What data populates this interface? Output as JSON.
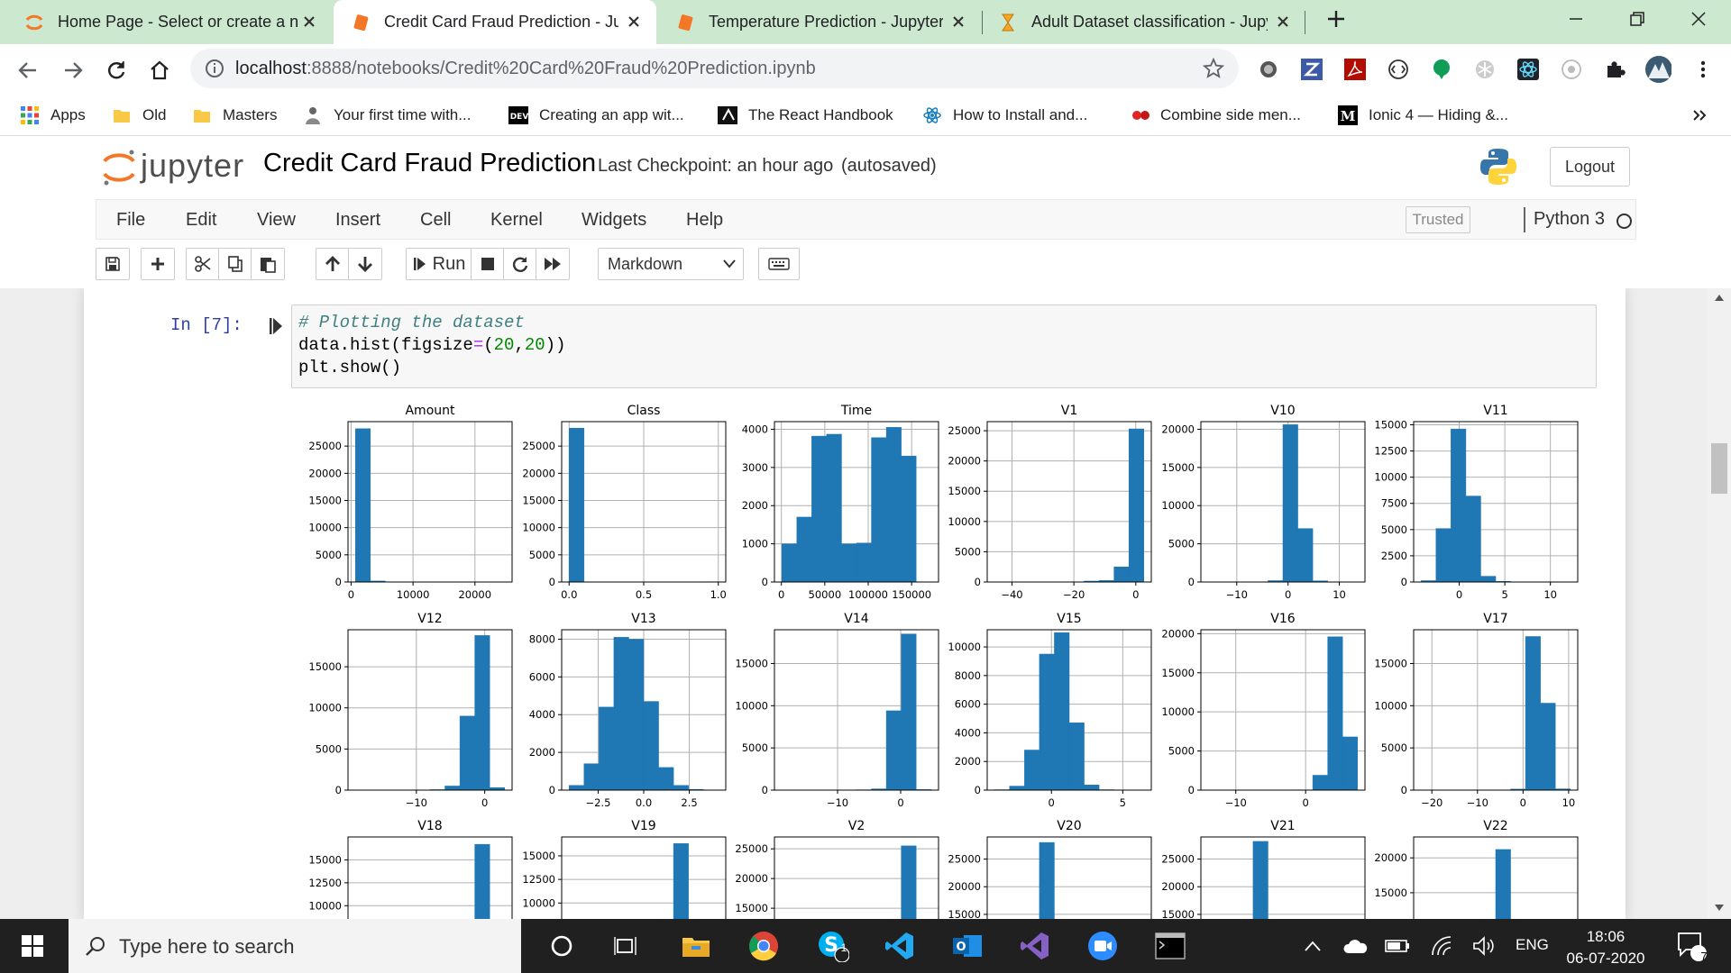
{
  "tabs": [
    {
      "title": "Home Page - Select or create a n",
      "icon": "jupyter-icon",
      "active": false
    },
    {
      "title": "Credit Card Fraud Prediction - Ju",
      "icon": "notebook-icon",
      "active": true
    },
    {
      "title": "Temperature Prediction - Jupyter",
      "icon": "notebook-icon",
      "active": false
    },
    {
      "title": "Adult Dataset classification - Jupy",
      "icon": "hourglass-icon",
      "active": false
    }
  ],
  "address": {
    "host": "localhost",
    "path": ":8888/notebooks/Credit%20Card%20Fraud%20Prediction.ipynb"
  },
  "bookmarks": [
    {
      "label": "Apps",
      "icon": "apps-grid-icon"
    },
    {
      "label": "Old",
      "icon": "folder-icon"
    },
    {
      "label": "Masters",
      "icon": "folder-icon"
    },
    {
      "label": "Your first time with...",
      "icon": "person-icon"
    },
    {
      "label": "Creating an app wit...",
      "icon": "dev-icon"
    },
    {
      "label": "The React Handbook",
      "icon": "react-handbook-icon"
    },
    {
      "label": "How to Install and...",
      "icon": "react-icon"
    },
    {
      "label": "Combine side men...",
      "icon": "ionic-icon"
    },
    {
      "label": "Ionic 4 — Hiding &...",
      "icon": "medium-icon"
    }
  ],
  "jupyter": {
    "brand": "jupyter",
    "notebook_title": "Credit Card Fraud Prediction",
    "checkpoint": "Last Checkpoint: an hour ago",
    "autosaved": "(autosaved)",
    "logout": "Logout"
  },
  "menu": [
    "File",
    "Edit",
    "View",
    "Insert",
    "Cell",
    "Kernel",
    "Widgets",
    "Help"
  ],
  "trusted": "Trusted",
  "kernel": "Python 3",
  "toolbar": {
    "run": "Run",
    "cell_type": "Markdown"
  },
  "cell": {
    "prompt": "In [7]:",
    "code": [
      {
        "comment": "# Plotting the dataset"
      },
      {
        "pre": "data.hist(figsize",
        "op": "=",
        "mid": "(",
        "n1": "20",
        "sep": ",",
        "n2": "20",
        "post": "))"
      },
      {
        "text": "plt.show()"
      }
    ]
  },
  "chart_data": {
    "type": "bar",
    "title": "",
    "grid": true,
    "color": "#1f77b4",
    "subplots": [
      {
        "title": "Amount",
        "bins": 10,
        "xlim": [
          -500,
          26000
        ],
        "xticks": [
          0,
          10000,
          20000
        ],
        "xticklabels": [
          "0",
          "10000",
          "20000"
        ],
        "ylim": [
          0,
          29500
        ],
        "yticks": [
          0,
          5000,
          10000,
          15000,
          20000,
          25000
        ],
        "values": [
          28200,
          180,
          14,
          2,
          1,
          1,
          1,
          0,
          0,
          1
        ]
      },
      {
        "title": "Class",
        "bins": 10,
        "xlim": [
          -0.05,
          1.05
        ],
        "xticks": [
          0,
          0.5,
          1
        ],
        "xticklabels": [
          "0.0",
          "0.5",
          "1.0"
        ],
        "ylim": [
          0,
          29500
        ],
        "yticks": [
          0,
          5000,
          10000,
          15000,
          20000,
          25000
        ],
        "values": [
          28300,
          0,
          0,
          0,
          0,
          0,
          0,
          0,
          0,
          45
        ]
      },
      {
        "title": "Time",
        "bins": 10,
        "xlim": [
          -8000,
          181000
        ],
        "xticks": [
          0,
          50000,
          100000,
          150000
        ],
        "xticklabels": [
          "0",
          "50000",
          "100000",
          "150000"
        ],
        "ylim": [
          0,
          4200
        ],
        "yticks": [
          0,
          1000,
          2000,
          3000,
          4000
        ],
        "values": [
          1000,
          1700,
          3820,
          3870,
          1000,
          1020,
          3780,
          4050,
          3300,
          0
        ]
      },
      {
        "title": "V1",
        "bins": 10,
        "xlim": [
          -48,
          5
        ],
        "xticks": [
          -40,
          -20,
          0
        ],
        "xticklabels": [
          "−40",
          "−20",
          "0"
        ],
        "ylim": [
          0,
          26500
        ],
        "yticks": [
          0,
          5000,
          10000,
          15000,
          20000,
          25000
        ],
        "values": [
          0,
          0,
          0,
          0,
          0,
          0,
          150,
          250,
          2500,
          25300
        ]
      },
      {
        "title": "V10",
        "bins": 10,
        "xlim": [
          -17,
          15
        ],
        "xticks": [
          -10,
          0,
          10
        ],
        "xticklabels": [
          "−10",
          "0",
          "10"
        ],
        "ylim": [
          0,
          21000
        ],
        "yticks": [
          0,
          5000,
          10000,
          15000,
          20000
        ],
        "values": [
          0,
          0,
          0,
          0,
          180,
          20600,
          7000,
          150,
          10,
          0
        ]
      },
      {
        "title": "V11",
        "bins": 10,
        "xlim": [
          -5,
          13
        ],
        "xticks": [
          0,
          5,
          10
        ],
        "xticklabels": [
          "0",
          "5",
          "10"
        ],
        "ylim": [
          0,
          15300
        ],
        "yticks": [
          0,
          2500,
          5000,
          7500,
          10000,
          12500,
          15000
        ],
        "values": [
          130,
          5100,
          14600,
          8200,
          550,
          60,
          5,
          0,
          0,
          0
        ]
      },
      {
        "title": "V12",
        "bins": 10,
        "xlim": [
          -20,
          4
        ],
        "xticks": [
          -10,
          0
        ],
        "xticklabels": [
          "−10",
          "0"
        ],
        "ylim": [
          0,
          19500
        ],
        "yticks": [
          0,
          5000,
          10000,
          15000
        ],
        "values": [
          0,
          0,
          0,
          0,
          20,
          60,
          500,
          9000,
          18800,
          300
        ]
      },
      {
        "title": "V13",
        "bins": 10,
        "xlim": [
          -4.5,
          4.5
        ],
        "xticks": [
          -2.5,
          0,
          2.5
        ],
        "xticklabels": [
          "−2.5",
          "0.0",
          "2.5"
        ],
        "ylim": [
          0,
          8500
        ],
        "yticks": [
          0,
          2000,
          4000,
          6000,
          8000
        ],
        "values": [
          250,
          1400,
          4400,
          8100,
          8000,
          4700,
          1200,
          250,
          40,
          10
        ]
      },
      {
        "title": "V14",
        "bins": 10,
        "xlim": [
          -20,
          6
        ],
        "xticks": [
          -10,
          0
        ],
        "xticklabels": [
          "−10",
          "0"
        ],
        "ylim": [
          0,
          19000
        ],
        "yticks": [
          0,
          5000,
          10000,
          15000
        ],
        "values": [
          0,
          0,
          0,
          0,
          10,
          40,
          150,
          9400,
          18500,
          70
        ]
      },
      {
        "title": "V15",
        "bins": 10,
        "xlim": [
          -4.5,
          7
        ],
        "xticks": [
          0,
          5
        ],
        "xticklabels": [
          "0",
          "5"
        ],
        "ylim": [
          0,
          11200
        ],
        "yticks": [
          0,
          2000,
          4000,
          6000,
          8000,
          10000
        ],
        "values": [
          30,
          280,
          2800,
          9500,
          11000,
          4700,
          360,
          30,
          0,
          0
        ]
      },
      {
        "title": "V16",
        "bins": 10,
        "xlim": [
          -15,
          8.5
        ],
        "xticks": [
          -10,
          0
        ],
        "xticklabels": [
          "−10",
          "0"
        ],
        "ylim": [
          0,
          20500
        ],
        "yticks": [
          0,
          5000,
          10000,
          15000,
          20000
        ],
        "values": [
          0,
          0,
          0,
          0,
          0,
          0,
          30,
          1900,
          19600,
          6800
        ]
      },
      {
        "title": "V17",
        "bins": 10,
        "xlim": [
          -24,
          12
        ],
        "xticks": [
          -20,
          -10,
          0,
          10
        ],
        "xticklabels": [
          "−20",
          "−10",
          "0",
          "10"
        ],
        "ylim": [
          0,
          19000
        ],
        "yticks": [
          0,
          5000,
          10000,
          15000
        ],
        "values": [
          0,
          0,
          0,
          0,
          0,
          0,
          120,
          18200,
          10300,
          150
        ]
      },
      {
        "title": "V18",
        "bins": 10,
        "xlim": [
          -10,
          6
        ],
        "xticks": [],
        "xticklabels": [],
        "ylim": [
          0,
          17500
        ],
        "yticks": [
          10000,
          12500,
          15000
        ],
        "values": [
          0,
          0,
          0,
          0,
          0,
          0,
          200,
          1500,
          16700,
          300
        ]
      },
      {
        "title": "V19",
        "bins": 10,
        "xlim": [
          -8,
          7
        ],
        "xticks": [],
        "xticklabels": [],
        "ylim": [
          0,
          17000
        ],
        "yticks": [
          10000,
          12500,
          15000
        ],
        "values": [
          0,
          0,
          0,
          0,
          0,
          30,
          1700,
          16300,
          400,
          10
        ]
      },
      {
        "title": "V2",
        "bins": 10,
        "xlim": [
          -75,
          25
        ],
        "xticks": [],
        "xticklabels": [],
        "ylim": [
          0,
          27000
        ],
        "yticks": [
          15000,
          20000,
          25000
        ],
        "values": [
          0,
          0,
          0,
          0,
          0,
          0,
          0,
          300,
          25500,
          100
        ]
      },
      {
        "title": "V20",
        "bins": 10,
        "xlim": [
          -25,
          40
        ],
        "xticks": [],
        "xticklabels": [],
        "ylim": [
          0,
          29000
        ],
        "yticks": [
          15000,
          20000,
          25000
        ],
        "values": [
          0,
          0,
          100,
          28000,
          150,
          0,
          0,
          0,
          0,
          0
        ]
      },
      {
        "title": "V21",
        "bins": 10,
        "xlim": [
          -25,
          30
        ],
        "xticks": [],
        "xticklabels": [],
        "ylim": [
          0,
          29000
        ],
        "yticks": [
          15000,
          20000,
          25000
        ],
        "values": [
          0,
          0,
          100,
          28200,
          150,
          0,
          0,
          0,
          0,
          0
        ]
      },
      {
        "title": "V22",
        "bins": 10,
        "xlim": [
          -10,
          10
        ],
        "xticks": [],
        "xticklabels": [],
        "ylim": [
          0,
          23000
        ],
        "yticks": [
          15000,
          20000
        ],
        "values": [
          0,
          0,
          0,
          0,
          100,
          21200,
          200,
          0,
          0,
          0
        ]
      }
    ]
  },
  "taskbar": {
    "search_placeholder": "Type here to search",
    "skype_badge": "1",
    "lang": "ENG",
    "time": "18:06",
    "date": "06-07-2020",
    "notif_count": "7"
  }
}
